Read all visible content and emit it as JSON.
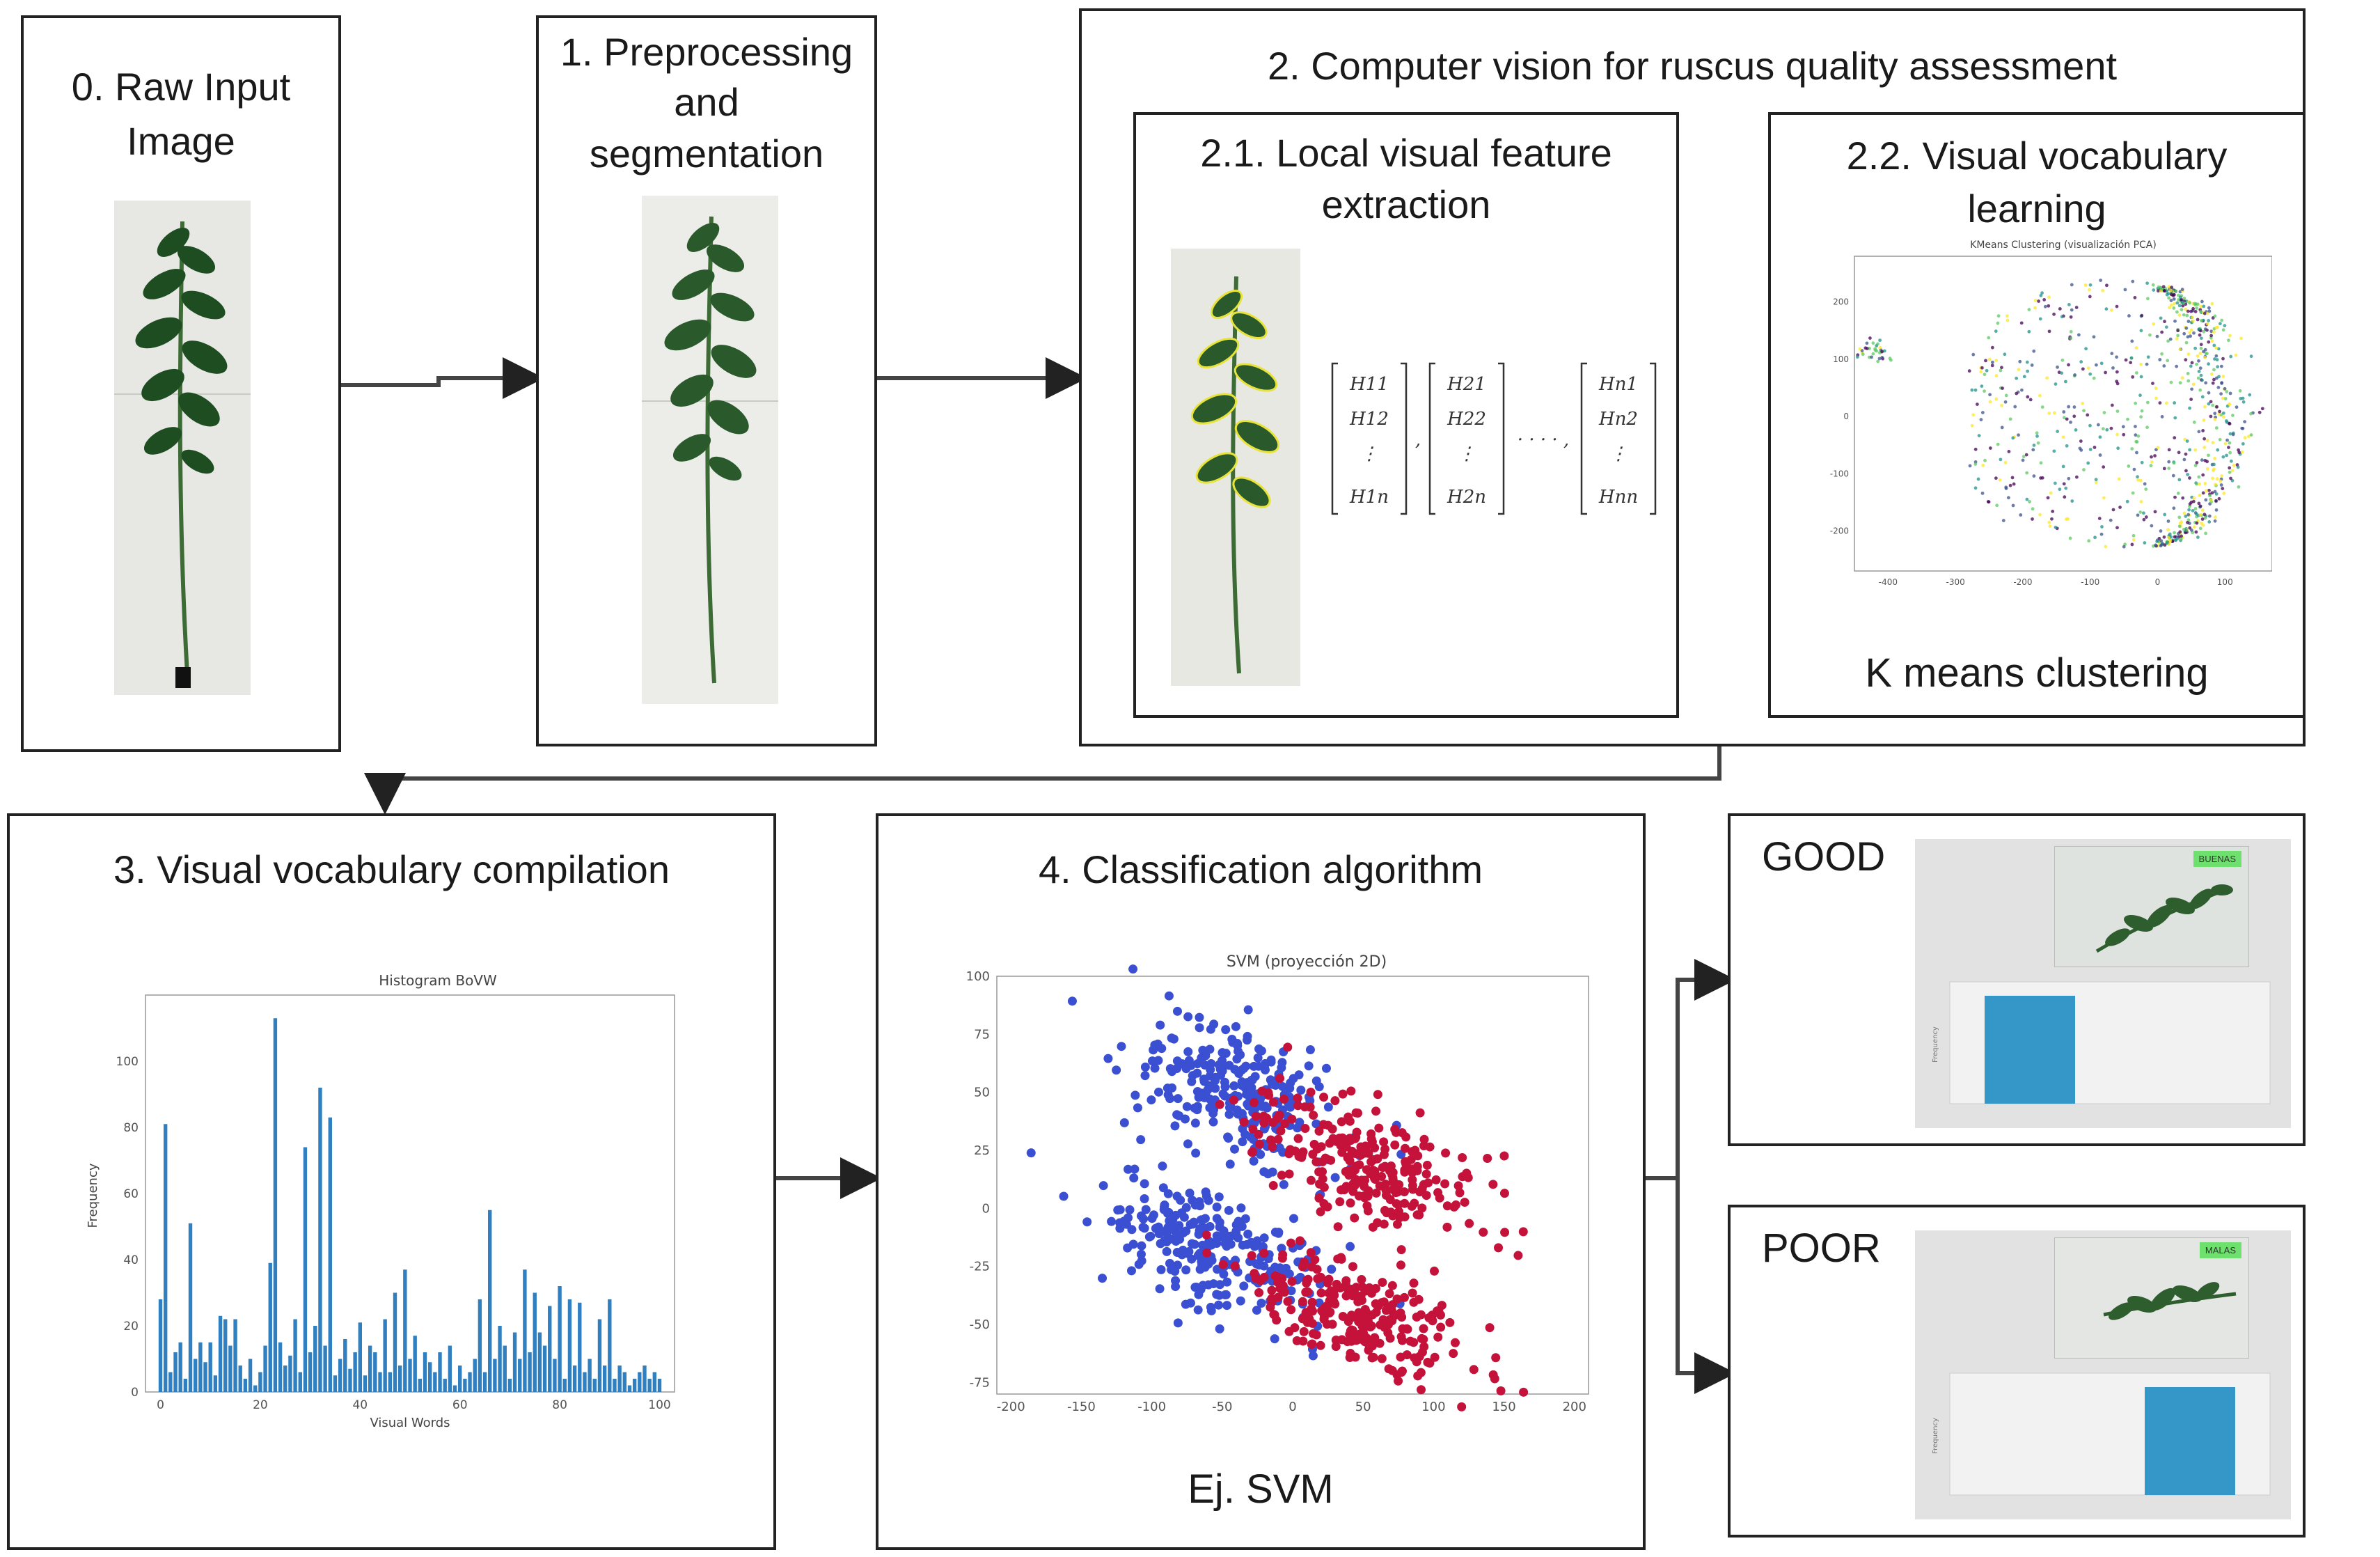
{
  "stages": {
    "raw": {
      "title_line1": "0. Raw Input",
      "title_line2": "Image"
    },
    "pre": {
      "title_line1": "1. Preprocessing",
      "title_line2": "and",
      "title_line3": "segmentation"
    },
    "cv": {
      "title": "2. Computer vision for ruscus quality assessment"
    },
    "local": {
      "title_line1": "2.1. Local visual feature",
      "title_line2": "extraction"
    },
    "vocab": {
      "title_line1": "2.2. Visual vocabulary",
      "title_line2": "learning",
      "caption": "K means clustering"
    },
    "compile": {
      "title": "3. Visual vocabulary compilation"
    },
    "classify": {
      "title": "4. Classification algorithm",
      "caption": "Ej. SVM"
    }
  },
  "results": {
    "good": {
      "label": "GOOD",
      "tag": "BUENAS"
    },
    "poor": {
      "label": "POOR",
      "tag": "MALAS"
    }
  },
  "matrix": {
    "col1": [
      "H11",
      "H12",
      "⋮",
      "H1n"
    ],
    "col2": [
      "H21",
      "H22",
      "⋮",
      "H2n"
    ],
    "coln": [
      "Hn1",
      "Hn2",
      "⋮",
      "Hnn"
    ],
    "sep": ",",
    "dots": "· · · · ,"
  },
  "chart_data": [
    {
      "type": "scatter",
      "title": "KMeans Clustering (visualización PCA)",
      "xlabel": "",
      "ylabel": "",
      "x_ticks": [
        -400,
        -300,
        -200,
        -100,
        0,
        100
      ],
      "y_ticks": [
        200,
        100,
        0,
        -100,
        -200
      ],
      "xlim": [
        -450,
        170
      ],
      "ylim": [
        -270,
        280
      ],
      "grid": false,
      "legend": "none",
      "colors": [
        "#440154",
        "#3b528b",
        "#21918c",
        "#5ec962",
        "#fde725"
      ]
    },
    {
      "type": "bar",
      "title": "Histogram BoVW",
      "xlabel": "Visual Words",
      "ylabel": "Frequency",
      "x_ticks": [
        0,
        20,
        40,
        60,
        80,
        100
      ],
      "y_ticks": [
        0,
        20,
        40,
        60,
        80,
        100
      ],
      "xlim": [
        -3,
        103
      ],
      "ylim": [
        0,
        120
      ],
      "color": "#2f7fc1",
      "categories": [
        0,
        1,
        2,
        3,
        4,
        5,
        6,
        7,
        8,
        9,
        10,
        11,
        12,
        13,
        14,
        15,
        16,
        17,
        18,
        19,
        20,
        21,
        22,
        23,
        24,
        25,
        26,
        27,
        28,
        29,
        30,
        31,
        32,
        33,
        34,
        35,
        36,
        37,
        38,
        39,
        40,
        41,
        42,
        43,
        44,
        45,
        46,
        47,
        48,
        49,
        50,
        51,
        52,
        53,
        54,
        55,
        56,
        57,
        58,
        59,
        60,
        61,
        62,
        63,
        64,
        65,
        66,
        67,
        68,
        69,
        70,
        71,
        72,
        73,
        74,
        75,
        76,
        77,
        78,
        79,
        80,
        81,
        82,
        83,
        84,
        85,
        86,
        87,
        88,
        89,
        90,
        91,
        92,
        93,
        94,
        95,
        96,
        97,
        98,
        99,
        100
      ],
      "values": [
        28,
        81,
        6,
        12,
        15,
        4,
        51,
        10,
        15,
        9,
        15,
        5,
        23,
        22,
        14,
        22,
        8,
        4,
        10,
        2,
        6,
        14,
        39,
        113,
        15,
        8,
        11,
        22,
        6,
        74,
        12,
        20,
        92,
        14,
        83,
        5,
        10,
        16,
        7,
        12,
        21,
        5,
        14,
        12,
        6,
        22,
        6,
        30,
        8,
        37,
        10,
        17,
        4,
        12,
        9,
        6,
        12,
        4,
        14,
        2,
        8,
        4,
        6,
        10,
        28,
        6,
        55,
        10,
        20,
        14,
        4,
        18,
        10,
        37,
        12,
        30,
        18,
        14,
        26,
        10,
        32,
        4,
        28,
        8,
        27,
        6,
        10,
        4,
        22,
        8,
        28,
        4,
        8,
        6,
        2,
        4,
        6,
        8,
        4,
        6,
        4
      ]
    },
    {
      "type": "scatter",
      "title": "SVM (proyección 2D)",
      "xlabel": "",
      "ylabel": "",
      "x_ticks": [
        -200,
        -150,
        -100,
        -50,
        0,
        50,
        100,
        150,
        200
      ],
      "y_ticks": [
        100,
        75,
        50,
        25,
        0,
        -25,
        -50,
        -75
      ],
      "xlim": [
        -210,
        210
      ],
      "ylim": [
        -80,
        100
      ],
      "grid": false,
      "legend": "none",
      "series": [
        {
          "color": "#3a4fd1",
          "clusters": [
            {
              "cx": -40,
              "cy": 50,
              "sx": 35,
              "sy": 15
            },
            {
              "cx": -60,
              "cy": -18,
              "sx": 40,
              "sy": 12
            }
          ]
        },
        {
          "color": "#c4123a",
          "clusters": [
            {
              "cx": 50,
              "cy": 20,
              "sx": 40,
              "sy": 12
            },
            {
              "cx": 45,
              "cy": -45,
              "sx": 40,
              "sy": 12
            }
          ]
        }
      ]
    },
    {
      "type": "bar",
      "title": "",
      "ylabel": "Frequency",
      "categories": [
        "BUENAS",
        "MALAS"
      ],
      "values": [
        1,
        0
      ],
      "color": "#3596c8"
    },
    {
      "type": "bar",
      "title": "",
      "ylabel": "Frequency",
      "categories": [
        "BUENAS",
        "MALAS"
      ],
      "values": [
        0,
        1
      ],
      "color": "#3596c8"
    }
  ]
}
